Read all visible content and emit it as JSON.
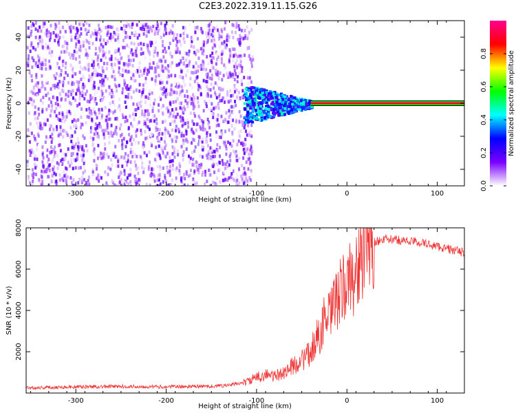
{
  "title": "C2E3.2022.319.11.15.G26",
  "chart_data": [
    {
      "type": "heatmap",
      "xlabel": "Height of straight line (km)",
      "ylabel": "Frequency (Hz)",
      "xlim": [
        -355,
        130
      ],
      "ylim": [
        -50,
        50
      ],
      "xticks": [
        -300,
        -200,
        -100,
        0,
        100
      ],
      "yticks": [
        -40,
        -20,
        0,
        20,
        40
      ],
      "colorbar": {
        "label": "Normalized spectral amplitude",
        "range": [
          0,
          1
        ],
        "ticks": [
          "0.0",
          "0.2",
          "0.4",
          "0.6",
          "0.8"
        ],
        "colors": [
          "#ffffff",
          "#7b00ff",
          "#0000ff",
          "#00ffff",
          "#00ff00",
          "#ffff00",
          "#ff0000",
          "#ff0090"
        ]
      },
      "features": [
        {
          "name": "noise",
          "x_range": [
            -355,
            -115
          ],
          "freq_range": [
            -50,
            50
          ],
          "amplitude": 0.1
        },
        {
          "name": "transition",
          "x_range": [
            -115,
            -40
          ],
          "freq_center": 0,
          "amplitude": 0.35
        },
        {
          "name": "carrier",
          "x_range": [
            -40,
            130
          ],
          "freq_center": 0,
          "amplitude": 0.9
        }
      ],
      "grid": false
    },
    {
      "type": "line",
      "xlabel": "Height of straight line (km)",
      "ylabel": "SNR (10 * v/v)",
      "xlim": [
        -355,
        130
      ],
      "ylim": [
        0,
        8000
      ],
      "xticks": [
        -300,
        -200,
        -100,
        0,
        100
      ],
      "yticks": [
        2000,
        4000,
        6000,
        8000
      ],
      "color": "#ee3333",
      "series": [
        {
          "x": [
            -355,
            -300,
            -250,
            -200,
            -150,
            -130,
            -110,
            -100,
            -90,
            -80,
            -70,
            -60,
            -50,
            -40,
            -35,
            -30,
            -25,
            -20,
            -15,
            -10,
            -5,
            0,
            5,
            10,
            15,
            20,
            30,
            40,
            60,
            80,
            100,
            120,
            130
          ],
          "values": [
            250,
            300,
            320,
            300,
            330,
            380,
            550,
            750,
            900,
            800,
            1000,
            1300,
            1600,
            1900,
            2600,
            2800,
            3600,
            3600,
            4200,
            4600,
            5000,
            5300,
            5600,
            5800,
            6400,
            7000,
            7300,
            7450,
            7400,
            7300,
            7100,
            6900,
            6800
          ]
        }
      ],
      "grid": false
    }
  ]
}
